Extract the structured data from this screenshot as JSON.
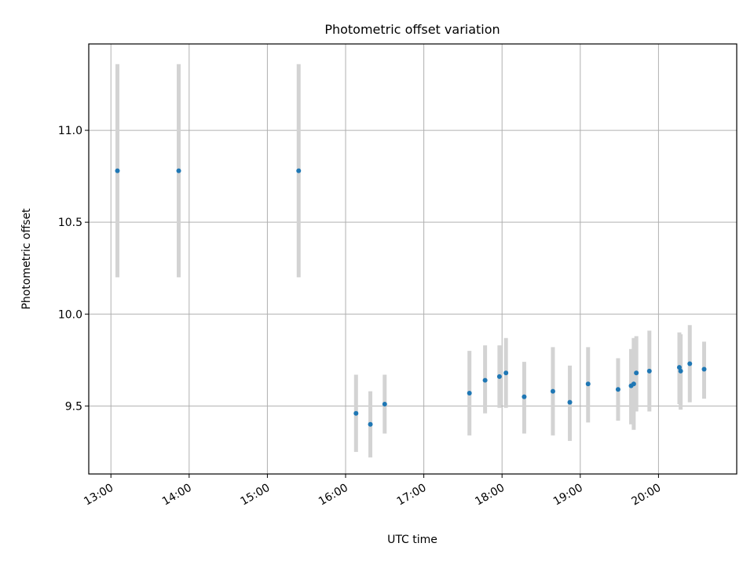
{
  "chart_data": {
    "type": "scatter",
    "title": "Photometric offset variation",
    "xlabel": "UTC time",
    "ylabel": "Photometric offset",
    "x_tick_labels": [
      "13:00",
      "14:00",
      "15:00",
      "16:00",
      "17:00",
      "18:00",
      "19:00",
      "20:00"
    ],
    "y_tick_labels": [
      "9.5",
      "10.0",
      "10.5",
      "11.0"
    ],
    "y_ticks": [
      9.5,
      10.0,
      10.5,
      11.0
    ],
    "xlim": [
      "12:43",
      "21:00"
    ],
    "ylim": [
      9.13,
      11.47
    ],
    "grid": true,
    "marker_color": "#1f77b4",
    "errorbar_color": "#d3d3d3",
    "points": [
      {
        "t": "13:05",
        "y": 10.78,
        "lo": 10.2,
        "hi": 11.36
      },
      {
        "t": "13:52",
        "y": 10.78,
        "lo": 10.2,
        "hi": 11.36
      },
      {
        "t": "15:24",
        "y": 10.78,
        "lo": 10.2,
        "hi": 11.36
      },
      {
        "t": "16:08",
        "y": 9.46,
        "lo": 9.25,
        "hi": 9.67
      },
      {
        "t": "16:19",
        "y": 9.4,
        "lo": 9.22,
        "hi": 9.58
      },
      {
        "t": "16:30",
        "y": 9.51,
        "lo": 9.35,
        "hi": 9.67
      },
      {
        "t": "17:35",
        "y": 9.57,
        "lo": 9.34,
        "hi": 9.8
      },
      {
        "t": "17:47",
        "y": 9.64,
        "lo": 9.46,
        "hi": 9.83
      },
      {
        "t": "17:58",
        "y": 9.66,
        "lo": 9.49,
        "hi": 9.83
      },
      {
        "t": "18:03",
        "y": 9.68,
        "lo": 9.49,
        "hi": 9.87
      },
      {
        "t": "18:17",
        "y": 9.55,
        "lo": 9.35,
        "hi": 9.74
      },
      {
        "t": "18:39",
        "y": 9.58,
        "lo": 9.34,
        "hi": 9.82
      },
      {
        "t": "18:52",
        "y": 9.52,
        "lo": 9.31,
        "hi": 9.72
      },
      {
        "t": "19:06",
        "y": 9.62,
        "lo": 9.41,
        "hi": 9.82
      },
      {
        "t": "19:29",
        "y": 9.59,
        "lo": 9.42,
        "hi": 9.76
      },
      {
        "t": "19:39",
        "y": 9.61,
        "lo": 9.4,
        "hi": 9.81
      },
      {
        "t": "19:41",
        "y": 9.62,
        "lo": 9.37,
        "hi": 9.87
      },
      {
        "t": "19:43",
        "y": 9.68,
        "lo": 9.47,
        "hi": 9.88
      },
      {
        "t": "19:53",
        "y": 9.69,
        "lo": 9.47,
        "hi": 9.91
      },
      {
        "t": "20:16",
        "y": 9.71,
        "lo": 9.51,
        "hi": 9.9
      },
      {
        "t": "20:17",
        "y": 9.69,
        "lo": 9.48,
        "hi": 9.89
      },
      {
        "t": "20:24",
        "y": 9.73,
        "lo": 9.52,
        "hi": 9.94
      },
      {
        "t": "20:35",
        "y": 9.7,
        "lo": 9.54,
        "hi": 9.85
      }
    ]
  }
}
